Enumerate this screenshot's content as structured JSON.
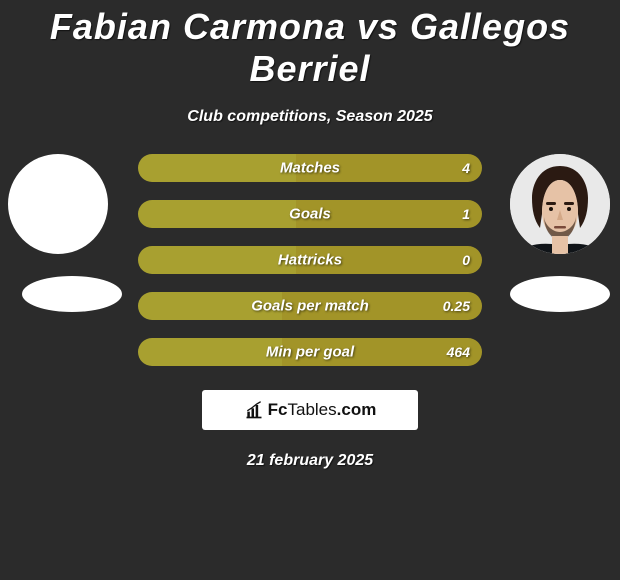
{
  "title": "Fabian Carmona vs Gallegos Berriel",
  "subtitle": "Club competitions, Season 2025",
  "date": "21 february 2025",
  "colors": {
    "left": "#a8a030",
    "right": "#a29428",
    "bg": "#2b2b2b"
  },
  "bars": [
    {
      "label": "Matches",
      "left_pct": 46,
      "right_val": "4"
    },
    {
      "label": "Goals",
      "left_pct": 46,
      "right_val": "1"
    },
    {
      "label": "Hattricks",
      "left_pct": 46,
      "right_val": "0"
    },
    {
      "label": "Goals per match",
      "left_pct": 42,
      "right_val": "0.25"
    },
    {
      "label": "Min per goal",
      "left_pct": 42,
      "right_val": "464"
    }
  ],
  "brand": {
    "fc": "Fc",
    "tables": "Tables",
    "dotcom": ".com"
  }
}
